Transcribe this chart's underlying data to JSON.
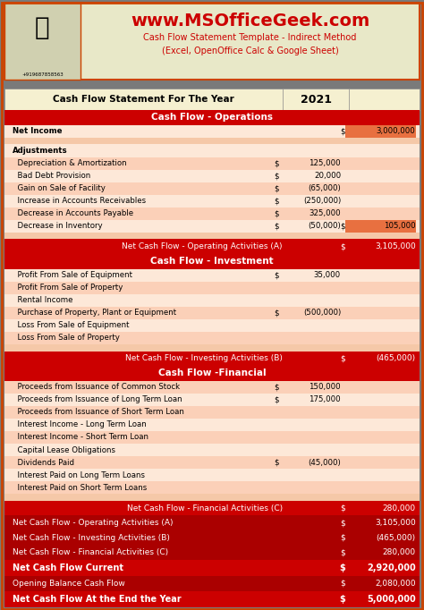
{
  "title_url": "www.MSOfficeGeek.com",
  "subtitle1": "Cash Flow Statement Template - Indirect Method",
  "subtitle2": "(Excel, OpenOffice Calc & Google Sheet)",
  "phone": "+919687858563",
  "bg_color": "#7a7a7a",
  "header_bg": "#e8e8c8",
  "red": "#cc0000",
  "light_red": "#f5b8a0",
  "lighter_red": "#fde0d0",
  "dark_red": "#aa0000",
  "year": "2021",
  "rows": [
    {
      "type": "year_header",
      "label": "Cash Flow Statement For The Year",
      "value": "2021"
    },
    {
      "type": "section_header",
      "label": "Cash Flow - Operations"
    },
    {
      "type": "data_bold",
      "label": "Net Income",
      "col2": "",
      "col2val": "",
      "col3": "$",
      "col3val": "3,000,000",
      "highlight3": true
    },
    {
      "type": "empty"
    },
    {
      "type": "bold_label",
      "label": "Adjustments"
    },
    {
      "type": "data",
      "label": "  Depreciation & Amortization",
      "col2": "$",
      "col2val": "125,000",
      "col3": "",
      "col3val": ""
    },
    {
      "type": "data",
      "label": "  Bad Debt Provision",
      "col2": "$",
      "col2val": "20,000",
      "col3": "",
      "col3val": ""
    },
    {
      "type": "data",
      "label": "  Gain on Sale of Facility",
      "col2": "$",
      "col2val": "(65,000)",
      "col3": "",
      "col3val": ""
    },
    {
      "type": "data",
      "label": "  Increase in Accounts Receivables",
      "col2": "$",
      "col2val": "(250,000)",
      "col3": "",
      "col3val": ""
    },
    {
      "type": "data",
      "label": "  Decrease in Accounts Payable",
      "col2": "$",
      "col2val": "325,000",
      "col3": "",
      "col3val": ""
    },
    {
      "type": "data",
      "label": "  Decrease in Inventory",
      "col2": "$",
      "col2val": "(50,000)",
      "col3": "$",
      "col3val": "105,000",
      "highlight3": true
    },
    {
      "type": "empty"
    },
    {
      "type": "summary_row",
      "label": "Net Cash Flow - Operating Activities (A)",
      "col3": "$",
      "col3val": "3,105,000"
    },
    {
      "type": "section_header",
      "label": "Cash Flow - Investment"
    },
    {
      "type": "data",
      "label": "  Profit From Sale of Equipment",
      "col2": "$",
      "col2val": "35,000",
      "col3": "",
      "col3val": ""
    },
    {
      "type": "data",
      "label": "  Profit From Sale of Property",
      "col2": "",
      "col2val": "",
      "col3": "",
      "col3val": ""
    },
    {
      "type": "data",
      "label": "  Rental Income",
      "col2": "",
      "col2val": "",
      "col3": "",
      "col3val": ""
    },
    {
      "type": "data",
      "label": "  Purchase of Property, Plant or Equipment",
      "col2": "$",
      "col2val": "(500,000)",
      "col3": "",
      "col3val": ""
    },
    {
      "type": "data",
      "label": "  Loss From Sale of Equipment",
      "col2": "",
      "col2val": "",
      "col3": "",
      "col3val": ""
    },
    {
      "type": "data",
      "label": "  Loss From Sale of Property",
      "col2": "",
      "col2val": "",
      "col3": "",
      "col3val": ""
    },
    {
      "type": "empty"
    },
    {
      "type": "summary_row",
      "label": "Net Cash Flow - Investing Activities (B)",
      "col3": "$",
      "col3val": "(465,000)"
    },
    {
      "type": "section_header",
      "label": "Cash Flow -Financial"
    },
    {
      "type": "data",
      "label": "  Proceeds from Issuance of Common Stock",
      "col2": "$",
      "col2val": "150,000",
      "col3": "",
      "col3val": ""
    },
    {
      "type": "data",
      "label": "  Proceeds from Issuance of Long Term Loan",
      "col2": "$",
      "col2val": "175,000",
      "col3": "",
      "col3val": ""
    },
    {
      "type": "data",
      "label": "  Proceeds from Issuance of Short Term Loan",
      "col2": "",
      "col2val": "",
      "col3": "",
      "col3val": ""
    },
    {
      "type": "data",
      "label": "  Interest Income - Long Term Loan",
      "col2": "",
      "col2val": "",
      "col3": "",
      "col3val": ""
    },
    {
      "type": "data",
      "label": "  Interest Income - Short Term Loan",
      "col2": "",
      "col2val": "",
      "col3": "",
      "col3val": ""
    },
    {
      "type": "data",
      "label": "  Capital Lease Obligations",
      "col2": "",
      "col2val": "",
      "col3": "",
      "col3val": ""
    },
    {
      "type": "data",
      "label": "  Dividends Paid",
      "col2": "$",
      "col2val": "(45,000)",
      "col3": "",
      "col3val": ""
    },
    {
      "type": "data",
      "label": "  Interest Paid on Long Term Loans",
      "col2": "",
      "col2val": "",
      "col3": "",
      "col3val": ""
    },
    {
      "type": "data",
      "label": "  Interest Paid on Short Term Loans",
      "col2": "",
      "col2val": "",
      "col3": "",
      "col3val": ""
    },
    {
      "type": "empty"
    },
    {
      "type": "summary_row",
      "label": "Net Cash Flow - Financial Activities (C)",
      "col3": "$",
      "col3val": "280,000"
    },
    {
      "type": "section_header2",
      "label": "Net Cash Flow - Operating Activities (A)",
      "col3": "$",
      "col3val": "3,105,000"
    },
    {
      "type": "section_header2",
      "label": "Net Cash Flow - Investing Activities (B)",
      "col3": "$",
      "col3val": "(465,000)"
    },
    {
      "type": "section_header2",
      "label": "Net Cash Flow - Financial Activities (C)",
      "col3": "$",
      "col3val": "280,000"
    },
    {
      "type": "section_header3",
      "label": "Net Cash Flow Current",
      "col3": "$",
      "col3val": "2,920,000"
    },
    {
      "type": "section_header2",
      "label": "Opening Balance Cash Flow",
      "col3": "$",
      "col3val": "2,080,000"
    },
    {
      "type": "section_header3",
      "label": "Net Cash Flow At the End the Year",
      "col3": "$",
      "col3val": "5,000,000"
    }
  ]
}
